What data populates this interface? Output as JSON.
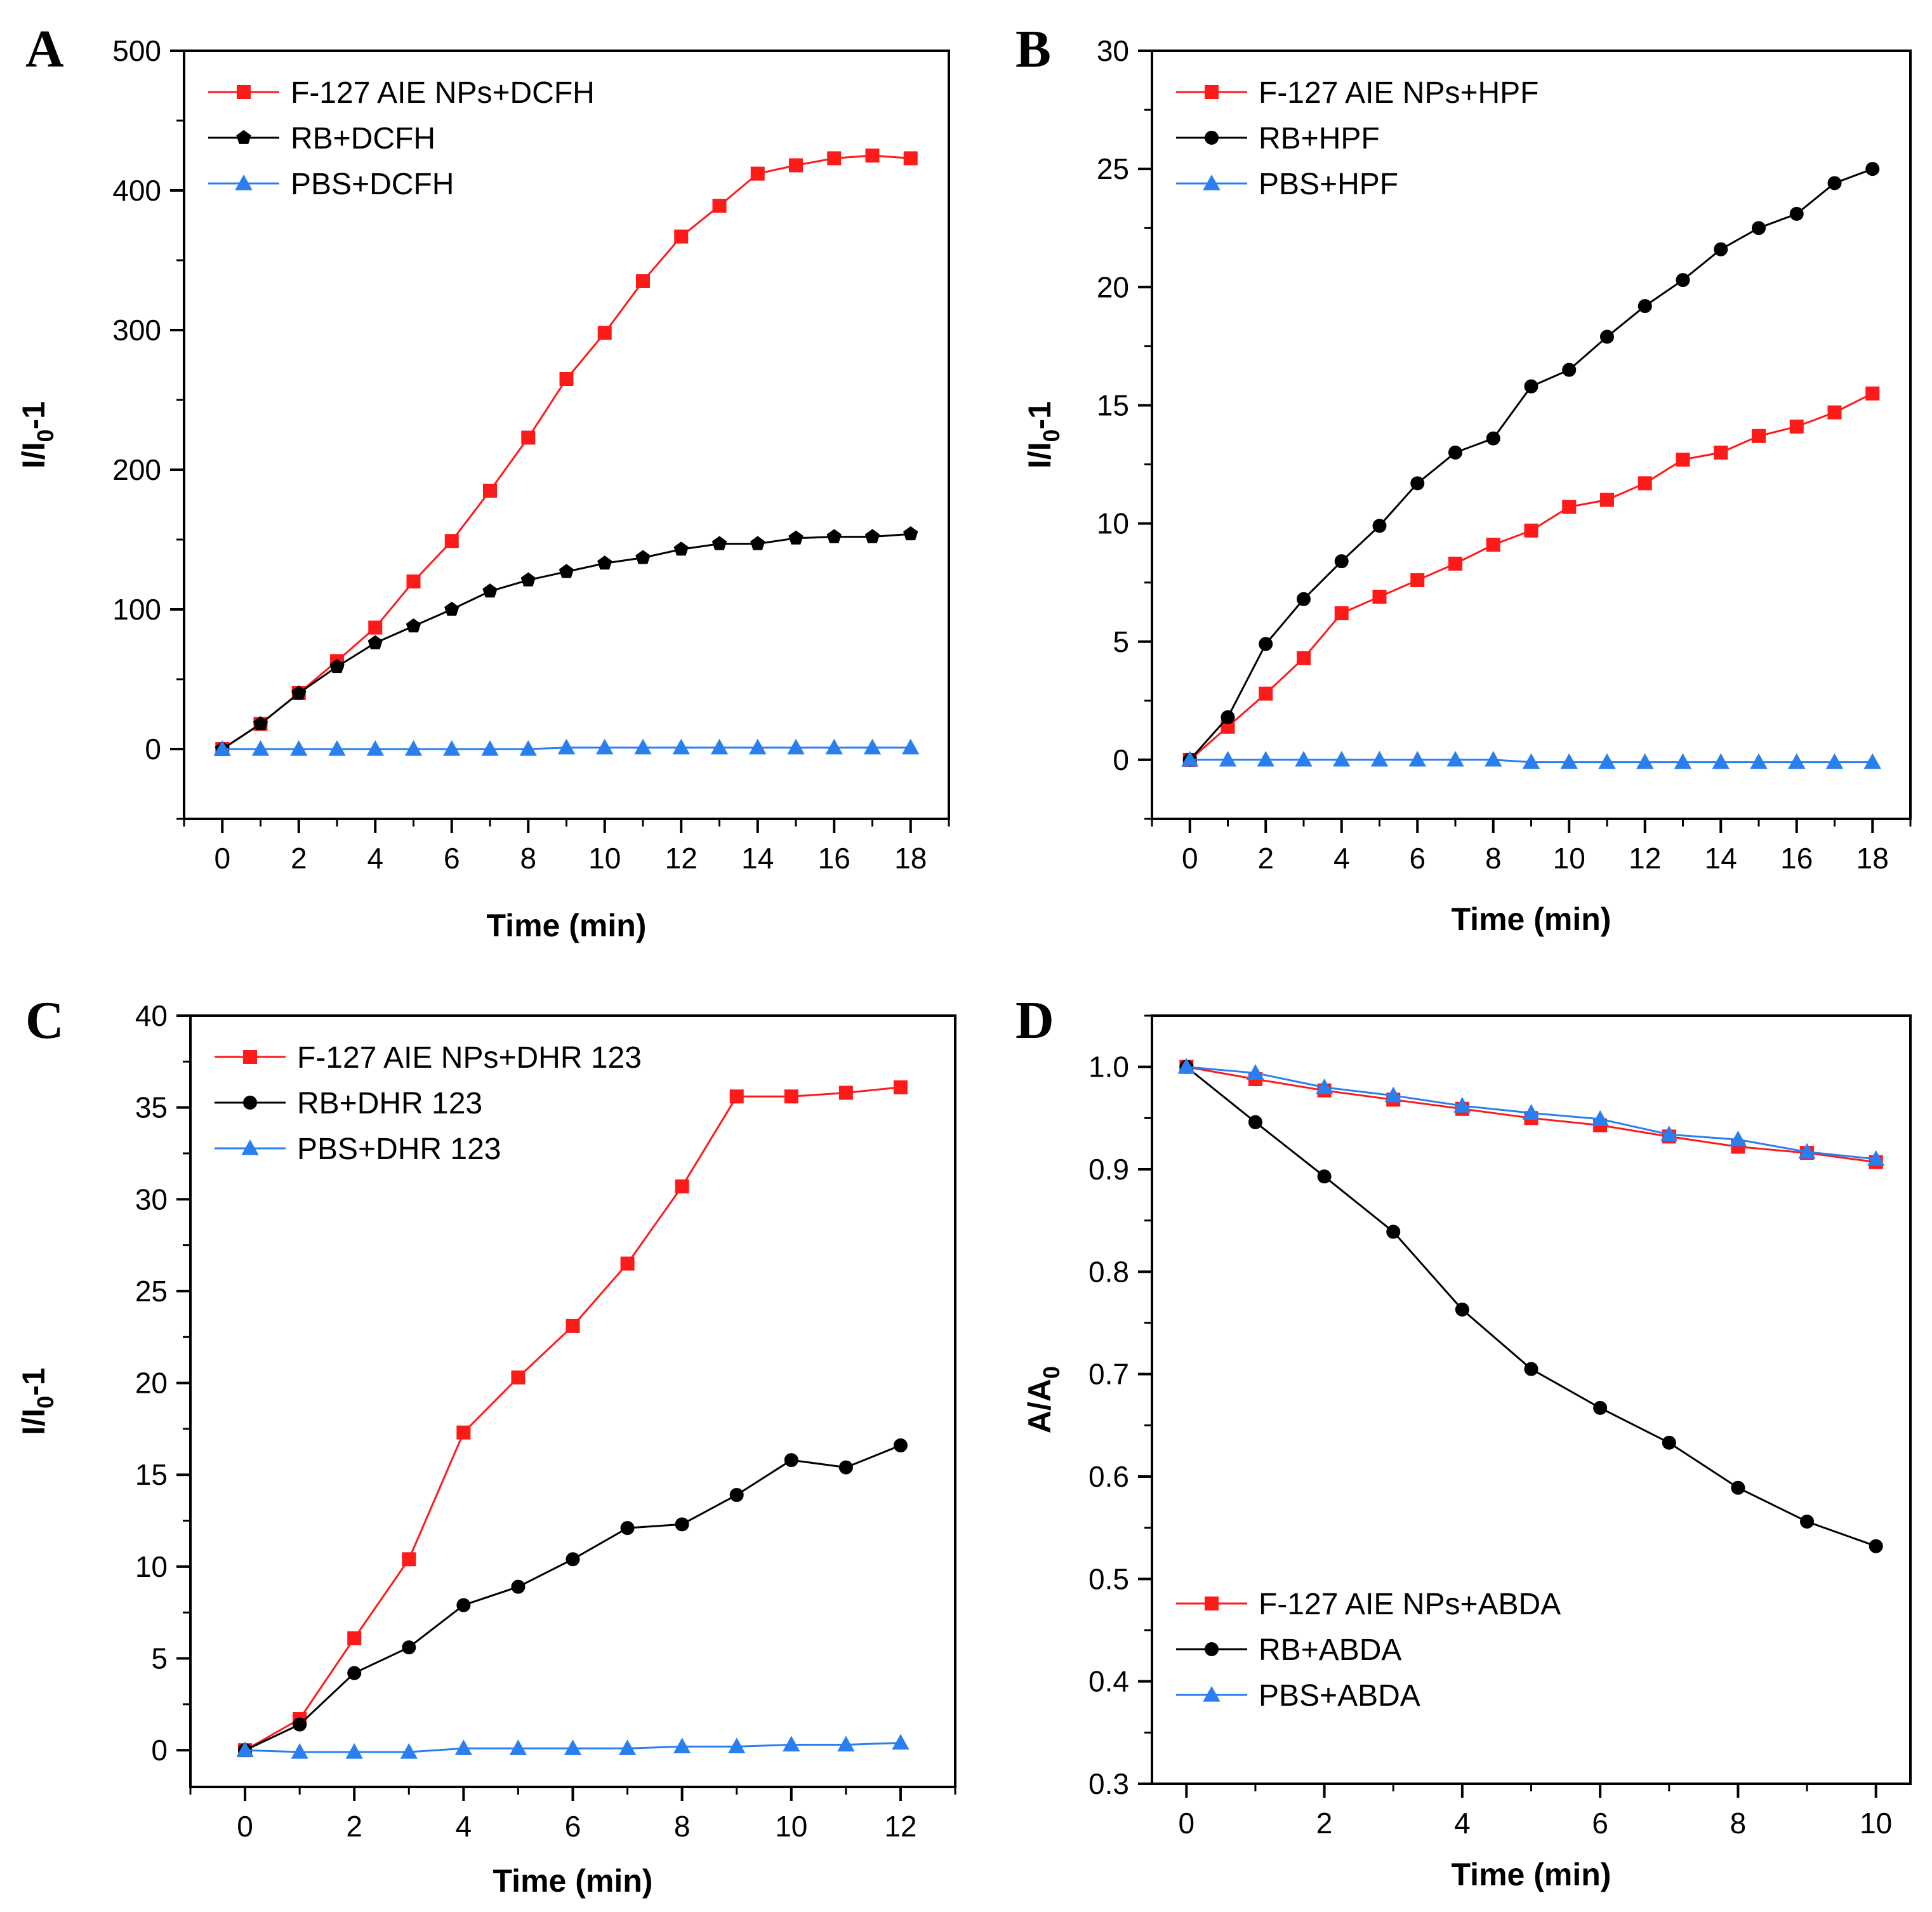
{
  "colors": {
    "red": "#ff1a1a",
    "black": "#000000",
    "blue": "#2a7ff0"
  },
  "chart_data": [
    {
      "panel": "A",
      "type": "line",
      "xlabel": "Time (min)",
      "ylabel_main": "I/I",
      "ylabel_sub": "0",
      "ylabel_suffix": "-1",
      "xlim": [
        -1,
        19
      ],
      "ylim": [
        -50,
        500
      ],
      "xticks": [
        0,
        2,
        4,
        6,
        8,
        10,
        12,
        14,
        16,
        18
      ],
      "yticks": [
        0,
        100,
        200,
        300,
        400,
        500
      ],
      "legend_position": "top-left",
      "series": [
        {
          "name": "F-127 AIE NPs+DCFH",
          "color": "red",
          "marker": "square",
          "x": [
            0,
            1,
            2,
            3,
            4,
            5,
            6,
            7,
            8,
            9,
            10,
            11,
            12,
            13,
            14,
            15,
            16,
            17,
            18
          ],
          "y": [
            0,
            18,
            40,
            63,
            87,
            120,
            149,
            185,
            223,
            265,
            298,
            335,
            367,
            389,
            412,
            418,
            423,
            425,
            423
          ]
        },
        {
          "name": "RB+DCFH",
          "color": "black",
          "marker": "pentagon",
          "x": [
            0,
            1,
            2,
            3,
            4,
            5,
            6,
            7,
            8,
            9,
            10,
            11,
            12,
            13,
            14,
            15,
            16,
            17,
            18
          ],
          "y": [
            0,
            18,
            40,
            59,
            76,
            88,
            100,
            113,
            121,
            127,
            133,
            137,
            143,
            147,
            147,
            151,
            152,
            152,
            154
          ]
        },
        {
          "name": "PBS+DCFH",
          "color": "blue",
          "marker": "triangle",
          "x": [
            0,
            1,
            2,
            3,
            4,
            5,
            6,
            7,
            8,
            9,
            10,
            11,
            12,
            13,
            14,
            15,
            16,
            17,
            18
          ],
          "y": [
            0,
            0,
            0,
            0,
            0,
            0,
            0,
            0,
            0,
            1,
            1,
            1,
            1,
            1,
            1,
            1,
            1,
            1,
            1
          ]
        }
      ]
    },
    {
      "panel": "B",
      "type": "line",
      "xlabel": "Time (min)",
      "ylabel_main": "I/I",
      "ylabel_sub": "0",
      "ylabel_suffix": "-1",
      "xlim": [
        -1,
        19
      ],
      "ylim": [
        -2.5,
        30
      ],
      "xticks": [
        0,
        2,
        4,
        6,
        8,
        10,
        12,
        14,
        16,
        18
      ],
      "yticks": [
        0,
        5,
        10,
        15,
        20,
        25,
        30
      ],
      "legend_position": "top-left",
      "series": [
        {
          "name": "F-127 AIE NPs+HPF",
          "color": "red",
          "marker": "square",
          "x": [
            0,
            1,
            2,
            3,
            4,
            5,
            6,
            7,
            8,
            9,
            10,
            11,
            12,
            13,
            14,
            15,
            16,
            17,
            18
          ],
          "y": [
            0,
            1.4,
            2.8,
            4.3,
            6.2,
            6.9,
            7.6,
            8.3,
            9.1,
            9.7,
            10.7,
            11.0,
            11.7,
            12.7,
            13.0,
            13.7,
            14.1,
            14.7,
            15.5
          ]
        },
        {
          "name": "RB+HPF",
          "color": "black",
          "marker": "circle",
          "x": [
            0,
            1,
            2,
            3,
            4,
            5,
            6,
            7,
            8,
            9,
            10,
            11,
            12,
            13,
            14,
            15,
            16,
            17,
            18
          ],
          "y": [
            0,
            1.8,
            4.9,
            6.8,
            8.4,
            9.9,
            11.7,
            13.0,
            13.6,
            15.8,
            16.5,
            17.9,
            19.2,
            20.3,
            21.6,
            22.5,
            23.1,
            24.4,
            25.0
          ]
        },
        {
          "name": "PBS+HPF",
          "color": "blue",
          "marker": "triangle",
          "x": [
            0,
            1,
            2,
            3,
            4,
            5,
            6,
            7,
            8,
            9,
            10,
            11,
            12,
            13,
            14,
            15,
            16,
            17,
            18
          ],
          "y": [
            0,
            0,
            0,
            0,
            0,
            0,
            0,
            0,
            0,
            -0.1,
            -0.1,
            -0.1,
            -0.1,
            -0.1,
            -0.1,
            -0.1,
            -0.1,
            -0.1,
            -0.1
          ]
        }
      ]
    },
    {
      "panel": "C",
      "type": "line",
      "xlabel": "Time (min)",
      "ylabel_main": "I/I",
      "ylabel_sub": "0",
      "ylabel_suffix": "-1",
      "xlim": [
        -1,
        13
      ],
      "ylim": [
        -2,
        40
      ],
      "xticks": [
        0,
        2,
        4,
        6,
        8,
        10,
        12
      ],
      "yticks": [
        0,
        5,
        10,
        15,
        20,
        25,
        30,
        35,
        40
      ],
      "legend_position": "top-left",
      "series": [
        {
          "name": "F-127 AIE NPs+DHR 123",
          "color": "red",
          "marker": "square",
          "x": [
            0,
            1,
            2,
            3,
            4,
            5,
            6,
            7,
            8,
            9,
            10,
            11,
            12
          ],
          "y": [
            0,
            1.7,
            6.1,
            10.4,
            17.3,
            20.3,
            23.1,
            26.5,
            30.7,
            35.6,
            35.6,
            35.8,
            36.1
          ]
        },
        {
          "name": "RB+DHR 123",
          "color": "black",
          "marker": "circle",
          "x": [
            0,
            1,
            2,
            3,
            4,
            5,
            6,
            7,
            8,
            9,
            10,
            11,
            12
          ],
          "y": [
            0,
            1.4,
            4.2,
            5.6,
            7.9,
            8.9,
            10.4,
            12.1,
            12.3,
            13.9,
            15.8,
            15.4,
            16.6
          ]
        },
        {
          "name": "PBS+DHR 123",
          "color": "blue",
          "marker": "triangle",
          "x": [
            0,
            1,
            2,
            3,
            4,
            5,
            6,
            7,
            8,
            9,
            10,
            11,
            12
          ],
          "y": [
            0,
            -0.1,
            -0.1,
            -0.1,
            0.1,
            0.1,
            0.1,
            0.1,
            0.2,
            0.2,
            0.3,
            0.3,
            0.4
          ]
        }
      ]
    },
    {
      "panel": "D",
      "type": "line",
      "xlabel": "Time (min)",
      "ylabel_main": "A/A",
      "ylabel_sub": "0",
      "ylabel_suffix": "",
      "xlim": [
        -0.5,
        10.5
      ],
      "ylim": [
        0.3,
        1.05
      ],
      "xticks": [
        0,
        2,
        4,
        6,
        8,
        10
      ],
      "yticks": [
        0.3,
        0.4,
        0.5,
        0.6,
        0.7,
        0.8,
        0.9,
        1.0
      ],
      "ytick_labels": [
        "0.3",
        "0.4",
        "0.5",
        "0.6",
        "0.7",
        "0.8",
        "0.9",
        "1.0"
      ],
      "legend_position": "bottom-left",
      "series": [
        {
          "name": "F-127 AIE NPs+ABDA",
          "color": "red",
          "marker": "square",
          "x": [
            0,
            1,
            2,
            3,
            4,
            5,
            6,
            7,
            8,
            9,
            10
          ],
          "y": [
            1.0,
            0.988,
            0.977,
            0.968,
            0.959,
            0.95,
            0.943,
            0.932,
            0.922,
            0.916,
            0.907
          ]
        },
        {
          "name": "RB+ABDA",
          "color": "black",
          "marker": "circle",
          "x": [
            0,
            1,
            2,
            3,
            4,
            5,
            6,
            7,
            8,
            9,
            10
          ],
          "y": [
            1.0,
            0.946,
            0.893,
            0.839,
            0.763,
            0.705,
            0.667,
            0.633,
            0.589,
            0.556,
            0.532
          ]
        },
        {
          "name": "PBS+ABDA",
          "color": "blue",
          "marker": "triangle",
          "x": [
            0,
            1,
            2,
            3,
            4,
            5,
            6,
            7,
            8,
            9,
            10
          ],
          "y": [
            1.0,
            0.994,
            0.98,
            0.972,
            0.962,
            0.955,
            0.949,
            0.934,
            0.929,
            0.917,
            0.91
          ]
        }
      ]
    }
  ]
}
